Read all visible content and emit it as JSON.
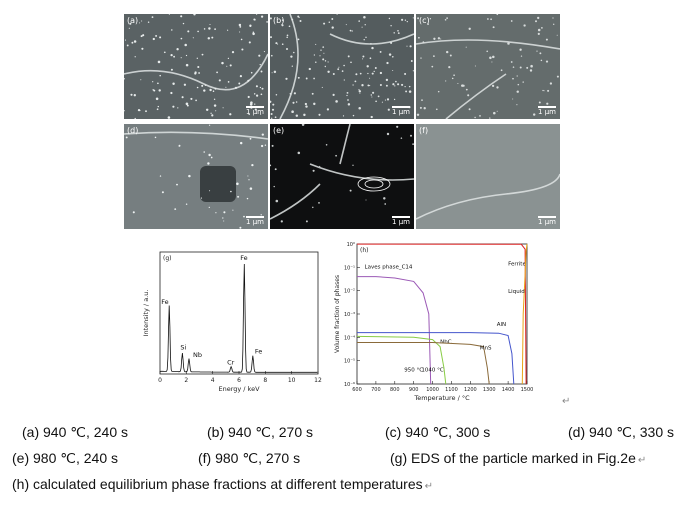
{
  "panels": [
    {
      "label": "(a)",
      "scale": "1 μm"
    },
    {
      "label": "(b)",
      "scale": "1 μm"
    },
    {
      "label": "(c)",
      "scale": "1 μm"
    },
    {
      "label": "(d)",
      "scale": "1 μm"
    },
    {
      "label": "(e)",
      "scale": "1 μm"
    },
    {
      "label": "(f)",
      "scale": "1 μm"
    }
  ],
  "chart_data": [
    {
      "type": "line",
      "panel_label": "(g)",
      "xlabel": "Energy / keV",
      "ylabel": "Intensity / a.u.",
      "xlim": [
        0,
        12
      ],
      "xticks": [
        "0",
        "2",
        "4",
        "6",
        "8",
        "10",
        "12"
      ],
      "peaks": [
        {
          "x": 0.7,
          "y": 0.6,
          "label": "Fe"
        },
        {
          "x": 1.7,
          "y": 0.17,
          "label": "Si"
        },
        {
          "x": 2.2,
          "y": 0.12,
          "label": "Nb"
        },
        {
          "x": 5.4,
          "y": 0.05,
          "label": "Cr"
        },
        {
          "x": 6.4,
          "y": 1.0,
          "label": "Fe"
        },
        {
          "x": 7.05,
          "y": 0.15,
          "label": "Fe"
        }
      ]
    },
    {
      "type": "line",
      "panel_label": "(h)",
      "xlabel": "Temperature / °C",
      "ylabel": "Volume fraction of phases",
      "yscale": "log",
      "xlim": [
        600,
        1500
      ],
      "ylim": [
        1e-06,
        1
      ],
      "xticks": [
        "600",
        "700",
        "800",
        "900",
        "1000",
        "1100",
        "1200",
        "1300",
        "1400",
        "1500"
      ],
      "yticks": [
        "10⁻⁶",
        "10⁻⁵",
        "10⁻⁴",
        "10⁻³",
        "10⁻²",
        "10⁻¹",
        "10⁰"
      ],
      "annotations": [
        "950 °C",
        "1040 °C"
      ],
      "series": [
        {
          "name": "Laves phase_C14",
          "color": "#9b59b6",
          "x": [
            600,
            700,
            800,
            900,
            950,
            980,
            990
          ],
          "y": [
            0.04,
            0.04,
            0.035,
            0.025,
            0.008,
            0.001,
            1e-06
          ]
        },
        {
          "name": "AlN",
          "color": "#4455cc",
          "x": [
            600,
            1000,
            1200,
            1350,
            1400,
            1420,
            1430
          ],
          "y": [
            0.00016,
            0.00016,
            0.00016,
            0.00015,
            0.00012,
            2e-05,
            1e-06
          ]
        },
        {
          "name": "NbC",
          "color": "#88cc44",
          "x": [
            600,
            900,
            1000,
            1040,
            1060,
            1070
          ],
          "y": [
            0.00011,
            0.0001,
            8e-05,
            4e-05,
            5e-06,
            1e-06
          ]
        },
        {
          "name": "MnS",
          "color": "#8a6a3a",
          "x": [
            600,
            1000,
            1200,
            1270,
            1290,
            1300
          ],
          "y": [
            6e-05,
            6e-05,
            5e-05,
            4e-05,
            5e-06,
            1e-06
          ]
        },
        {
          "name": "Ferrite",
          "color": "#dd2222",
          "x": [
            600,
            1440,
            1470,
            1490,
            1495
          ],
          "y": [
            0.99,
            0.98,
            0.97,
            0.6,
            1e-06
          ]
        },
        {
          "name": "Liquid",
          "color": "#e8a317",
          "x": [
            1475,
            1480,
            1490,
            1495,
            1500
          ],
          "y": [
            1e-06,
            0.001,
            0.05,
            0.5,
            0.99
          ]
        }
      ]
    }
  ],
  "captions": {
    "a": "(a) 940 ℃, 240 s",
    "b": "(b) 940 ℃, 270 s",
    "c": "(c) 940 ℃, 300 s",
    "d": "(d) 940 ℃, 330 s",
    "e": "(e) 980 ℃, 240 s",
    "f": "(f) 980 ℃, 270 s",
    "g": "(g) EDS of the particle marked in Fig.2e",
    "h": "(h) calculated equilibrium phase fractions at different temperatures"
  },
  "return_mark": "↵"
}
